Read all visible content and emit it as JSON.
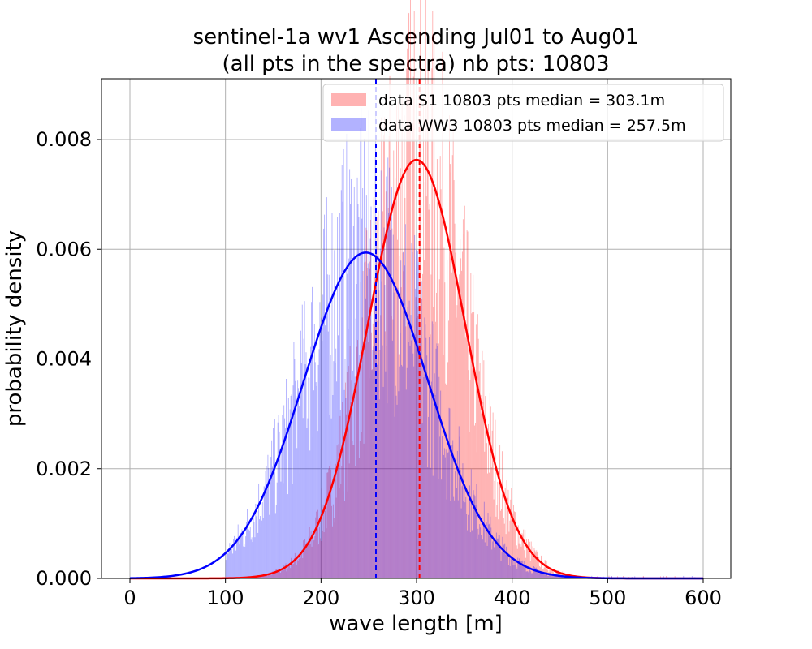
{
  "chart_data": {
    "type": "bar",
    "title_line1": "sentinel-1a wv1 Ascending Jul01 to Aug01",
    "title_line2": "(all pts in the spectra) nb pts: 10803",
    "xlabel": "wave length [m]",
    "ylabel": "probability density",
    "xlim": [
      -10,
      630
    ],
    "ylim": [
      0,
      0.0091
    ],
    "xticks": [
      0,
      100,
      200,
      300,
      400,
      500,
      600
    ],
    "yticks": [
      "0.000",
      "0.002",
      "0.004",
      "0.006",
      "0.008"
    ],
    "grid": true,
    "legend_position": "top-right",
    "series": [
      {
        "name": "data S1 10803 pts median = 303.1m",
        "color": "#ff8080",
        "alpha": 0.6,
        "fit_color": "#ff0000",
        "fit_mean": 300,
        "fit_std": 51,
        "fit_peak": 0.00763,
        "median": 303.1,
        "hist_range": [
          130,
          470
        ]
      },
      {
        "name": "data WW3 10803 pts median = 257.5m",
        "color": "#8080ff",
        "alpha": 0.6,
        "fit_color": "#0000ff",
        "fit_mean": 247,
        "fit_std": 65,
        "fit_peak": 0.00594,
        "median": 257.5,
        "hist_range": [
          100,
          480
        ]
      }
    ]
  }
}
